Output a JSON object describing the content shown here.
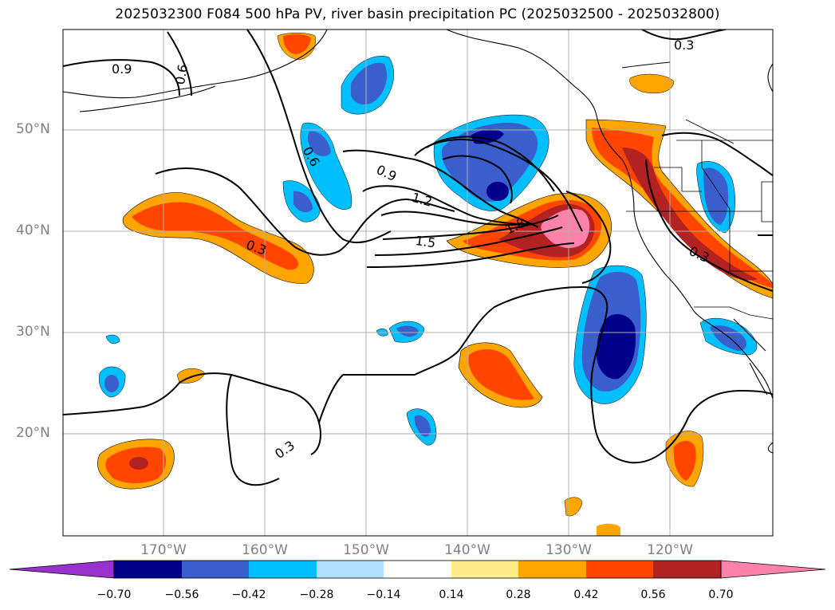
{
  "title": "2025032300 F084 500 hPa PV, river basin precipitation PC (2025032500 - 2025032800)",
  "map": {
    "region": "North-east Pacific / western North America",
    "lat_labels": [
      "50°N",
      "40°N",
      "30°N",
      "20°N"
    ],
    "lon_labels": [
      "170°W",
      "160°W",
      "150°W",
      "140°W",
      "130°W",
      "120°W"
    ],
    "contour_labels": [
      "0.9",
      "0.6",
      "0.6",
      "0.9",
      "1.2",
      "1.5",
      "1.8",
      "0.3",
      "0.3",
      "0.3",
      "0.3"
    ],
    "fill_field": "river basin precipitation PC",
    "contour_field": "500 hPa PV"
  },
  "colorbar": {
    "tick_labels": [
      "−0.70",
      "−0.56",
      "−0.42",
      "−0.28",
      "−0.14",
      "0.14",
      "0.28",
      "0.42",
      "0.56",
      "0.70"
    ],
    "colors": [
      "#9932CC",
      "#00008B",
      "#3A5FCD",
      "#00BFFF",
      "#B0E2FF",
      "#FFFFFF",
      "#FFEC8B",
      "#FFA500",
      "#FF4500",
      "#B22222",
      "#FF82AB"
    ]
  }
}
